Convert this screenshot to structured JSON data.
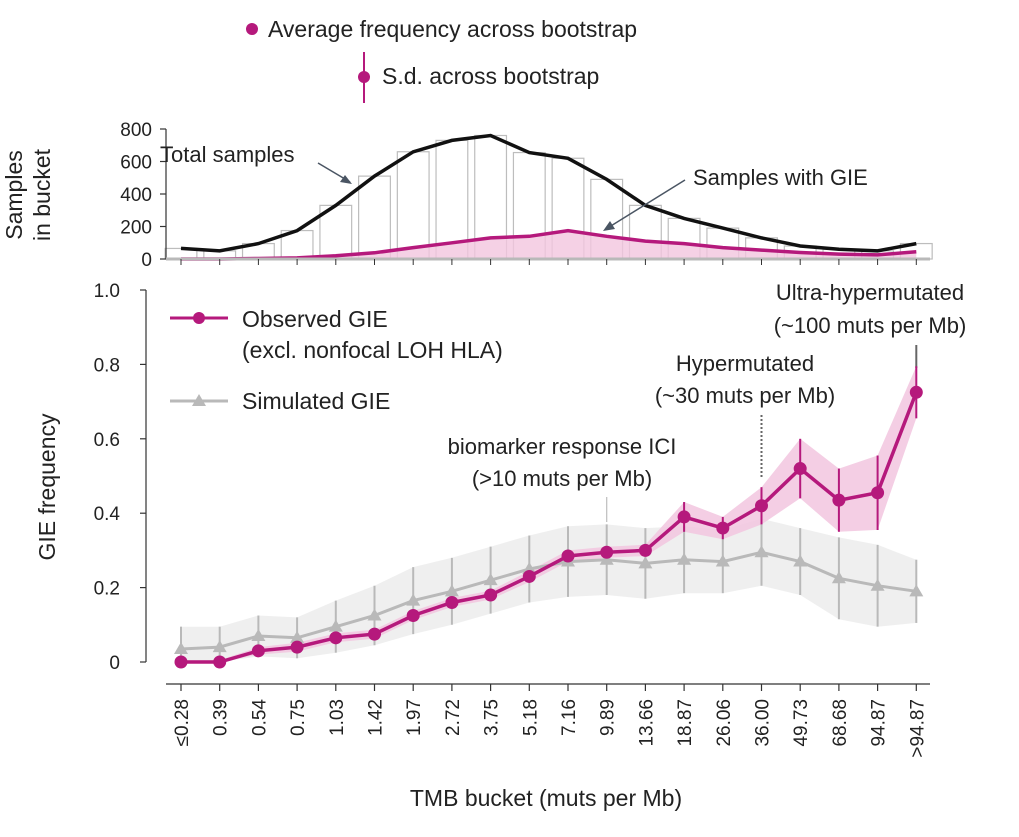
{
  "colors": {
    "observed": "#b5197c",
    "observed_band": "#f2c6df",
    "simulated": "#b9b9b9",
    "simulated_band": "#ececec",
    "total": "#111111",
    "bar_edge": "#bdbdbd",
    "axis": "#333333",
    "arrow": "#4a5563"
  },
  "top_legend": {
    "avg": "Average frequency across bootstrap",
    "sd": "S.d. across bootstrap"
  },
  "chart_data": [
    {
      "type": "bar",
      "title": "",
      "ylabel_line1": "Samples",
      "ylabel_line2": "in bucket",
      "ylim": [
        0,
        800
      ],
      "yticks": [
        "0",
        "200",
        "400",
        "600",
        "800"
      ],
      "ytick_values": [
        0,
        200,
        400,
        600,
        800
      ],
      "categories": [
        "≤0.28",
        "0.39",
        "0.54",
        "0.75",
        "1.03",
        "1.42",
        "1.97",
        "2.72",
        "3.75",
        "5.18",
        "7.16",
        "9.89",
        "13.66",
        "18.87",
        "26.06",
        "36.00",
        "49.73",
        "68.68",
        "94.87",
        ">94.87"
      ],
      "series": [
        {
          "name": "Total samples",
          "values": [
            65,
            50,
            95,
            175,
            330,
            510,
            660,
            730,
            760,
            655,
            620,
            490,
            330,
            250,
            190,
            130,
            80,
            60,
            50,
            95
          ]
        },
        {
          "name": "Samples with GIE",
          "values": [
            0,
            0,
            3,
            7,
            20,
            38,
            70,
            100,
            130,
            140,
            175,
            140,
            110,
            95,
            70,
            55,
            40,
            30,
            25,
            45
          ]
        }
      ],
      "annotations": {
        "total": "Total samples",
        "gie": "Samples with GIE"
      }
    },
    {
      "type": "line",
      "title": "",
      "xlabel": "TMB bucket (muts per Mb)",
      "ylabel": "GIE frequency",
      "ylim": [
        0,
        1.0
      ],
      "yticks": [
        "0",
        "0.2",
        "0.4",
        "0.6",
        "0.8",
        "1.0"
      ],
      "ytick_values": [
        0,
        0.2,
        0.4,
        0.6,
        0.8,
        1.0
      ],
      "categories": [
        "≤0.28",
        "0.39",
        "0.54",
        "0.75",
        "1.03",
        "1.42",
        "1.97",
        "2.72",
        "3.75",
        "5.18",
        "7.16",
        "9.89",
        "13.66",
        "18.87",
        "26.06",
        "36.00",
        "49.73",
        "68.68",
        "94.87",
        ">94.87"
      ],
      "series": [
        {
          "name": "Observed GIE",
          "name_line2": "(excl. nonfocal LOH HLA)",
          "values": [
            0.0,
            0.0,
            0.03,
            0.04,
            0.065,
            0.075,
            0.125,
            0.16,
            0.18,
            0.23,
            0.285,
            0.295,
            0.3,
            0.39,
            0.36,
            0.42,
            0.52,
            0.435,
            0.455,
            0.725
          ],
          "sd": [
            0.005,
            0.005,
            0.01,
            0.012,
            0.012,
            0.012,
            0.012,
            0.012,
            0.012,
            0.015,
            0.015,
            0.015,
            0.015,
            0.04,
            0.03,
            0.05,
            0.08,
            0.085,
            0.1,
            0.07
          ]
        },
        {
          "name": "Simulated GIE",
          "values": [
            0.035,
            0.04,
            0.07,
            0.065,
            0.095,
            0.125,
            0.165,
            0.19,
            0.22,
            0.25,
            0.27,
            0.275,
            0.265,
            0.275,
            0.27,
            0.295,
            0.27,
            0.225,
            0.205,
            0.19
          ],
          "sd": [
            0.06,
            0.055,
            0.055,
            0.055,
            0.07,
            0.08,
            0.09,
            0.09,
            0.09,
            0.09,
            0.095,
            0.095,
            0.095,
            0.09,
            0.085,
            0.09,
            0.09,
            0.11,
            0.11,
            0.085
          ]
        }
      ],
      "annotations": {
        "ici_line1": "biomarker response ICI",
        "ici_line2": "(>10 muts per Mb)",
        "hyper_line1": "Hypermutated",
        "hyper_line2": "(~30 muts per Mb)",
        "ultra_line1": "Ultra-hypermutated",
        "ultra_line2": "(~100 muts per Mb)"
      }
    }
  ]
}
